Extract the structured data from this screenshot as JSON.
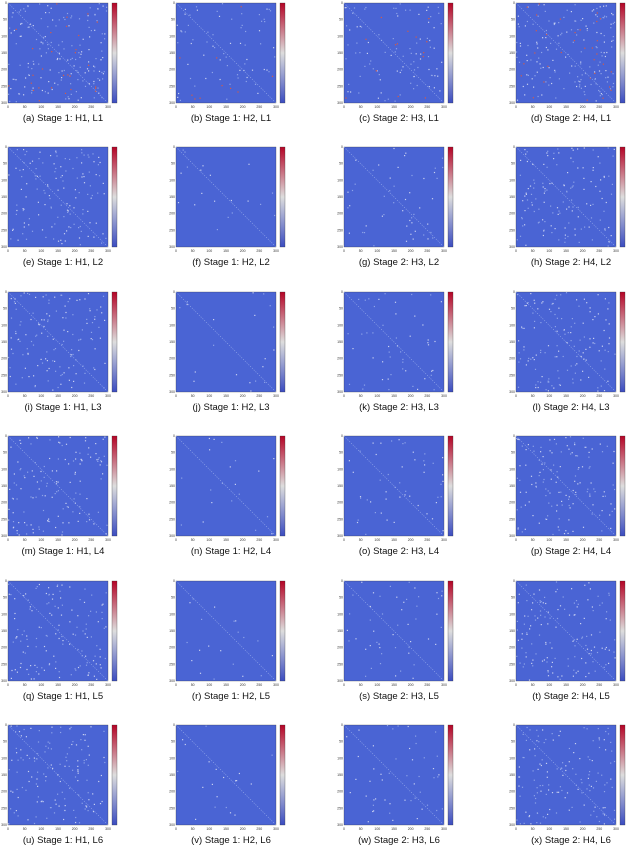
{
  "figure": {
    "axis_ticks": [
      0,
      50,
      100,
      150,
      200,
      250,
      300
    ],
    "panels": [
      {
        "caption": "(a) Stage 1: H1, L1"
      },
      {
        "caption": "(b) Stage 1: H2, L1"
      },
      {
        "caption": "(c) Stage 2: H3, L1"
      },
      {
        "caption": "(d) Stage 2: H4, L1"
      },
      {
        "caption": "(e) Stage 1: H1, L2"
      },
      {
        "caption": "(f) Stage 1: H2, L2"
      },
      {
        "caption": "(g) Stage 2: H3, L2"
      },
      {
        "caption": "(h) Stage 2: H4, L2"
      },
      {
        "caption": "(i) Stage 1: H1, L3"
      },
      {
        "caption": "(j) Stage 1: H2, L3"
      },
      {
        "caption": "(k) Stage 2: H3, L3"
      },
      {
        "caption": "(l) Stage 2: H4, L3"
      },
      {
        "caption": "(m) Stage 1: H1, L4"
      },
      {
        "caption": "(n) Stage 1: H2, L4"
      },
      {
        "caption": "(o) Stage 2: H3, L4"
      },
      {
        "caption": "(p) Stage 2: H4, L4"
      },
      {
        "caption": "(q) Stage 1: H1, L5"
      },
      {
        "caption": "(r) Stage 1: H2, L5"
      },
      {
        "caption": "(s) Stage 2: H3, L5"
      },
      {
        "caption": "(t) Stage 2: H4, L5"
      },
      {
        "caption": "(u) Stage 1: H1, L6"
      },
      {
        "caption": "(v) Stage 1: H2, L6"
      },
      {
        "caption": "(w) Stage 2: H3, L6"
      },
      {
        "caption": "(x) Stage 2: H4, L6"
      }
    ]
  }
}
